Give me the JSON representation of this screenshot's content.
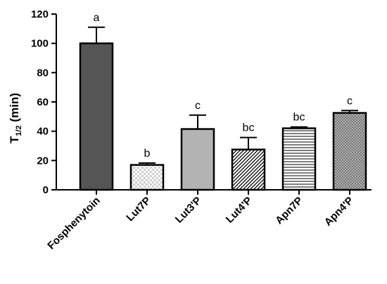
{
  "chart_data": {
    "type": "bar",
    "categories": [
      "Fosphenytoin",
      "Lut7P",
      "Lut3'P",
      "Lut4'P",
      "Apn7P",
      "Apn4'P"
    ],
    "values": [
      100,
      17,
      41.5,
      27.5,
      42,
      52.5
    ],
    "errors": [
      11,
      1.3,
      9.5,
      8.2,
      0.9,
      1.6
    ],
    "significance": [
      "a",
      "b",
      "c",
      "bc",
      "bc",
      "c"
    ],
    "ylabel": {
      "main": "T",
      "sub": "1/2",
      "suffix": " (min)"
    },
    "ylim": [
      0,
      120
    ],
    "yticks": [
      0,
      20,
      40,
      60,
      80,
      100,
      120
    ],
    "grid": false,
    "legend": "none",
    "bar_styles": [
      {
        "fill": "#555555",
        "pattern": "solid"
      },
      {
        "fill": "#ffffff",
        "pattern": "checker"
      },
      {
        "fill": "#b3b3b3",
        "pattern": "solid"
      },
      {
        "fill": "#ffffff",
        "pattern": "diagonal"
      },
      {
        "fill": "#ffffff",
        "pattern": "horizontal"
      },
      {
        "fill": "#b0b0b0",
        "pattern": "dots"
      }
    ]
  }
}
